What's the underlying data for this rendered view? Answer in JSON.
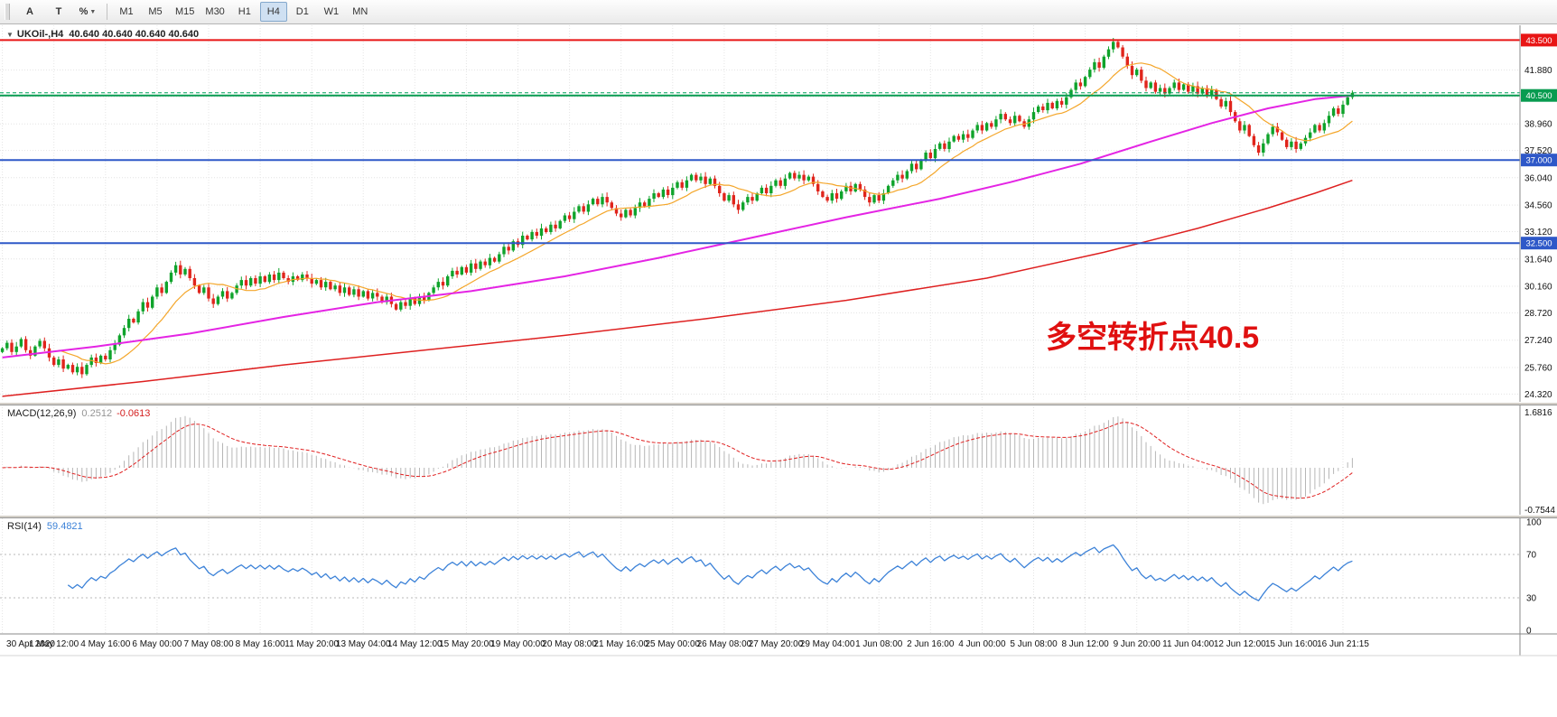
{
  "toolbar": {
    "tools": [
      {
        "id": "text-tool",
        "label": "A"
      },
      {
        "id": "label-tool",
        "label": "T"
      },
      {
        "id": "fibonacci-tool",
        "label": "%",
        "has_caret": true
      }
    ],
    "timeframes": [
      "M1",
      "M5",
      "M15",
      "M30",
      "H1",
      "H4",
      "D1",
      "W1",
      "MN"
    ],
    "active_timeframe": "H4"
  },
  "window": {
    "menu_icon": "▼",
    "title": "UKOil-,H4",
    "ohlc": "40.640 40.640 40.640 40.640"
  },
  "chart": {
    "annotation": "多空转折点40.5",
    "colors": {
      "up": "#0fa32b",
      "down": "#e0251c",
      "ma_fast": "#f4a62a",
      "ma_mid": "#e424e4",
      "ma_slow": "#de2020",
      "grid": "#e4e4e4",
      "axis_text": "#111111",
      "macd_hist": "#b6b6b6",
      "macd_signal": "#e02020",
      "rsi": "#3c82d8",
      "annotation": "#e01010",
      "hline_red": "#e81515",
      "hline_green": "#089b50",
      "hline_blue": "#2e58c8",
      "bid_line": "#00a05a"
    }
  },
  "indicators": {
    "macd": {
      "name": "MACD(12,26,9)",
      "main": "0.2512",
      "signal": "-0.0613",
      "axis_top": "1.6816",
      "axis_bottom": "-0.7544"
    },
    "rsi": {
      "name": "RSI(14)",
      "value": "59.4821",
      "axis": [
        "100",
        "70",
        "30",
        "0"
      ],
      "levels": [
        70,
        30
      ]
    }
  },
  "chart_data": {
    "type": "candlestick",
    "symbol": "UKOil-",
    "timeframe": "H4",
    "ylim": [
      23.9,
      44.3
    ],
    "first_open": 26.6,
    "current_price": 40.64,
    "price_axis_labels": [
      "41.880",
      "38.960",
      "37.520",
      "36.040",
      "34.560",
      "33.120",
      "31.640",
      "30.160",
      "28.720",
      "27.240",
      "25.760",
      "24.320"
    ],
    "extra_gridline": 40.42,
    "hlines": [
      {
        "value": 43.5,
        "label": "43.500",
        "color": "#e81515"
      },
      {
        "value": 40.5,
        "label": "40.500",
        "color": "#089b50"
      },
      {
        "value": 37.0,
        "label": "37.000",
        "color": "#2e58c8"
      },
      {
        "value": 32.5,
        "label": "32.500",
        "color": "#2e58c8"
      }
    ],
    "x_labels": [
      "30 Apr 2020",
      "1 May 12:00",
      "4 May 16:00",
      "6 May 00:00",
      "7 May 08:00",
      "8 May 16:00",
      "11 May 20:00",
      "13 May 04:00",
      "14 May 12:00",
      "15 May 20:00",
      "19 May 00:00",
      "20 May 08:00",
      "21 May 16:00",
      "25 May 00:00",
      "26 May 08:00",
      "27 May 20:00",
      "29 May 04:00",
      "1 Jun 08:00",
      "2 Jun 16:00",
      "4 Jun 00:00",
      "5 Jun 08:00",
      "8 Jun 12:00",
      "9 Jun 20:00",
      "11 Jun 04:00",
      "12 Jun 12:00",
      "15 Jun 16:00",
      "16 Jun 21:15"
    ],
    "x_label_step": 11,
    "closes": [
      26.8,
      27.1,
      26.6,
      26.9,
      27.3,
      26.7,
      26.4,
      26.9,
      27.2,
      26.8,
      26.3,
      25.9,
      26.2,
      25.7,
      25.9,
      25.5,
      25.8,
      25.4,
      25.9,
      26.3,
      26.0,
      26.4,
      26.2,
      26.7,
      27.0,
      27.5,
      27.9,
      28.4,
      28.2,
      28.8,
      29.3,
      29.0,
      29.6,
      30.1,
      29.8,
      30.4,
      30.9,
      31.3,
      30.8,
      31.1,
      30.6,
      30.2,
      29.8,
      30.1,
      29.5,
      29.2,
      29.6,
      29.9,
      29.5,
      29.8,
      30.2,
      30.5,
      30.2,
      30.6,
      30.3,
      30.7,
      30.4,
      30.8,
      30.5,
      30.9,
      30.6,
      30.4,
      30.7,
      30.5,
      30.8,
      30.6,
      30.3,
      30.5,
      30.1,
      30.4,
      30.0,
      30.2,
      29.8,
      30.1,
      29.7,
      30.0,
      29.6,
      29.9,
      29.5,
      29.8,
      29.6,
      29.3,
      29.6,
      29.2,
      28.9,
      29.3,
      29.1,
      29.5,
      29.2,
      29.6,
      29.4,
      29.8,
      30.1,
      30.4,
      30.2,
      30.7,
      31.0,
      30.8,
      31.2,
      30.9,
      31.4,
      31.1,
      31.5,
      31.3,
      31.7,
      31.5,
      31.9,
      32.3,
      32.1,
      32.6,
      32.4,
      32.9,
      32.7,
      33.1,
      32.9,
      33.3,
      33.1,
      33.5,
      33.3,
      33.7,
      34.0,
      33.8,
      34.2,
      34.5,
      34.2,
      34.6,
      34.9,
      34.6,
      35.0,
      34.7,
      34.4,
      34.1,
      33.9,
      34.3,
      34.0,
      34.4,
      34.7,
      34.5,
      34.9,
      35.2,
      35.0,
      35.4,
      35.1,
      35.5,
      35.8,
      35.5,
      35.9,
      36.2,
      35.9,
      36.1,
      35.7,
      36.0,
      35.6,
      35.2,
      34.8,
      35.1,
      34.6,
      34.3,
      34.7,
      35.0,
      34.8,
      35.2,
      35.5,
      35.2,
      35.6,
      35.9,
      35.6,
      36.0,
      36.3,
      36.0,
      36.2,
      35.9,
      36.1,
      35.7,
      35.3,
      35.0,
      34.8,
      35.2,
      34.9,
      35.3,
      35.6,
      35.3,
      35.7,
      35.4,
      35.0,
      34.7,
      35.1,
      34.8,
      35.2,
      35.6,
      35.9,
      36.2,
      36.0,
      36.4,
      36.8,
      36.5,
      37.0,
      37.4,
      37.1,
      37.6,
      37.9,
      37.6,
      38.0,
      38.3,
      38.1,
      38.4,
      38.2,
      38.6,
      38.9,
      38.6,
      39.0,
      38.8,
      39.2,
      39.5,
      39.2,
      39.0,
      39.4,
      39.1,
      38.8,
      39.2,
      39.6,
      39.9,
      39.7,
      40.1,
      39.8,
      40.2,
      40.0,
      40.4,
      40.8,
      41.2,
      41.0,
      41.5,
      41.9,
      42.3,
      42.0,
      42.6,
      43.0,
      43.4,
      43.1,
      42.6,
      42.1,
      41.6,
      41.9,
      41.3,
      40.9,
      41.2,
      40.7,
      40.9,
      40.6,
      40.9,
      41.2,
      40.8,
      41.1,
      40.7,
      41.0,
      40.6,
      40.9,
      40.5,
      40.8,
      40.3,
      39.9,
      40.2,
      39.6,
      39.1,
      38.6,
      38.9,
      38.3,
      37.8,
      37.4,
      37.9,
      38.4,
      38.8,
      38.5,
      38.1,
      37.7,
      38.0,
      37.6,
      37.9,
      38.2,
      38.5,
      38.9,
      38.6,
      39.0,
      39.4,
      39.8,
      39.5,
      40.0,
      40.4,
      40.64
    ],
    "moving_averages": {
      "fast": {
        "type": "sma",
        "period": 13,
        "color": "#f4a62a"
      },
      "mid": {
        "color": "#e424e4",
        "anchors": [
          [
            0,
            26.3
          ],
          [
            20,
            26.9
          ],
          [
            40,
            27.6
          ],
          [
            60,
            28.5
          ],
          [
            80,
            29.3
          ],
          [
            100,
            29.9
          ],
          [
            120,
            30.7
          ],
          [
            140,
            31.7
          ],
          [
            160,
            32.8
          ],
          [
            180,
            33.9
          ],
          [
            200,
            34.9
          ],
          [
            215,
            35.8
          ],
          [
            230,
            36.8
          ],
          [
            245,
            38.0
          ],
          [
            258,
            39.0
          ],
          [
            270,
            39.8
          ],
          [
            280,
            40.3
          ],
          [
            288,
            40.5
          ]
        ]
      },
      "slow": {
        "color": "#de2020",
        "anchors": [
          [
            0,
            24.2
          ],
          [
            30,
            25.0
          ],
          [
            60,
            25.9
          ],
          [
            90,
            26.7
          ],
          [
            120,
            27.5
          ],
          [
            150,
            28.4
          ],
          [
            180,
            29.4
          ],
          [
            210,
            30.6
          ],
          [
            235,
            32.0
          ],
          [
            255,
            33.3
          ],
          [
            270,
            34.4
          ],
          [
            280,
            35.2
          ],
          [
            288,
            35.9
          ]
        ]
      }
    }
  }
}
